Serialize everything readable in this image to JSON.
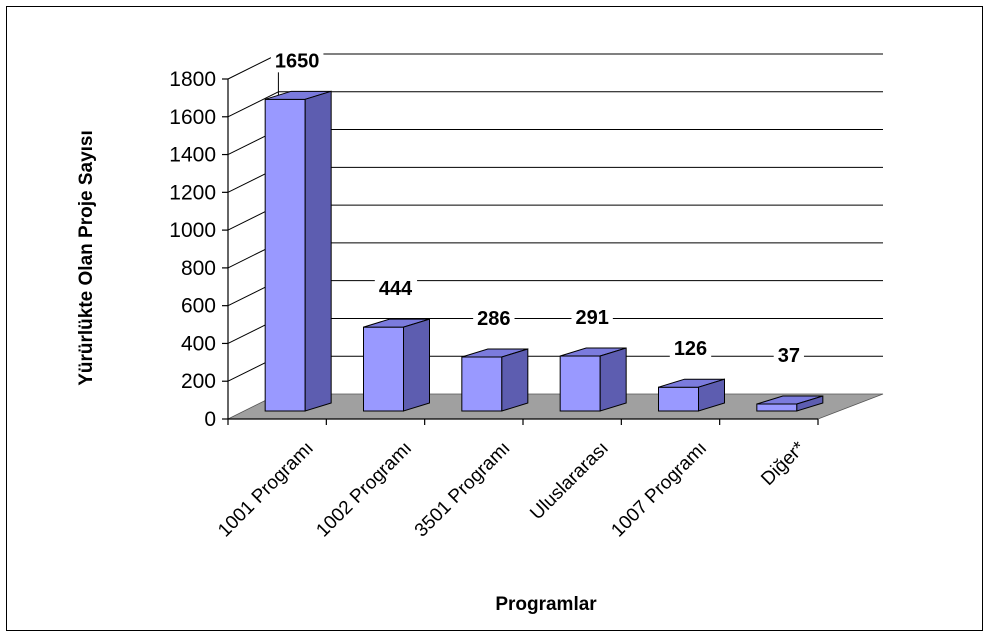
{
  "chart_data": {
    "type": "bar",
    "style": "3d-column",
    "categories": [
      "1001 Programı",
      "1002 Programı",
      "3501 Programı",
      "Uluslararası",
      "1007 Programı",
      "Diğer*"
    ],
    "values": [
      1650,
      444,
      286,
      291,
      126,
      37
    ],
    "data_labels": [
      "1650",
      "444",
      "286",
      "291",
      "126",
      "37"
    ],
    "xlabel": "Programlar",
    "ylabel": "Yürürlükte Olan Proje Sayısı",
    "ylim": [
      0,
      1800
    ],
    "yticks": [
      0,
      200,
      400,
      600,
      800,
      1000,
      1200,
      1400,
      1600,
      1800
    ],
    "grid": true,
    "legend": "none",
    "colors": {
      "bar_front": "#9999ff",
      "bar_top": "#7b7bdd",
      "bar_side": "#5d5db0",
      "floor": "#a0a0a0",
      "grid": "#000000"
    }
  }
}
